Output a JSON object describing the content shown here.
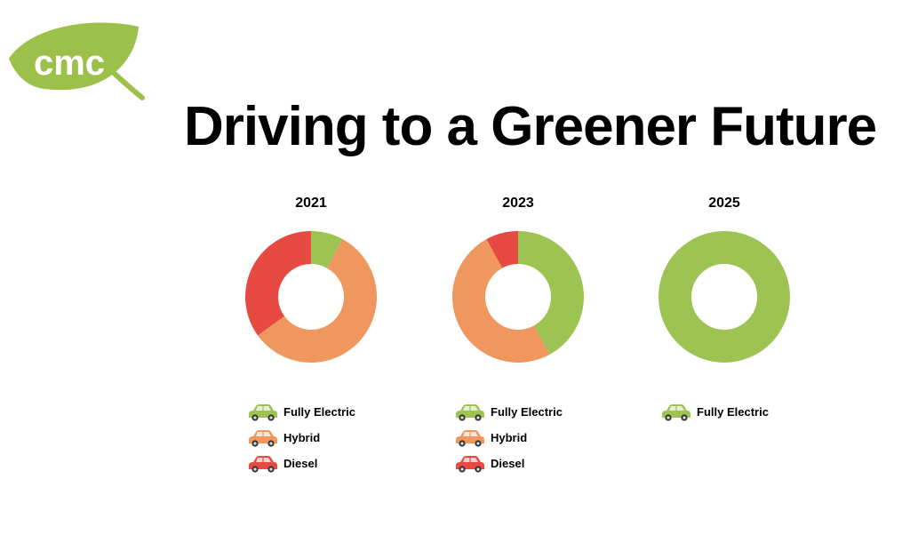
{
  "logo": {
    "text": "cmc",
    "icon": "leaf-icon",
    "color": "#9cc14a"
  },
  "title": "Driving to a Greener Future",
  "colors": {
    "Fully Electric": "#9dc352",
    "Hybrid": "#ef975f",
    "Diesel": "#e64a42"
  },
  "chart_data": [
    {
      "type": "pie",
      "donut": true,
      "title": "2021",
      "categories": [
        "Fully Electric",
        "Hybrid",
        "Diesel"
      ],
      "values": [
        8,
        57,
        35
      ],
      "legend": [
        "Fully Electric",
        "Hybrid",
        "Diesel"
      ]
    },
    {
      "type": "pie",
      "donut": true,
      "title": "2023",
      "categories": [
        "Fully Electric",
        "Hybrid",
        "Diesel"
      ],
      "values": [
        42,
        50,
        8
      ],
      "legend": [
        "Fully Electric",
        "Hybrid",
        "Diesel"
      ]
    },
    {
      "type": "pie",
      "donut": true,
      "title": "2025",
      "categories": [
        "Fully Electric"
      ],
      "values": [
        100
      ],
      "legend": [
        "Fully Electric"
      ]
    }
  ],
  "legend_icon": "car-icon"
}
